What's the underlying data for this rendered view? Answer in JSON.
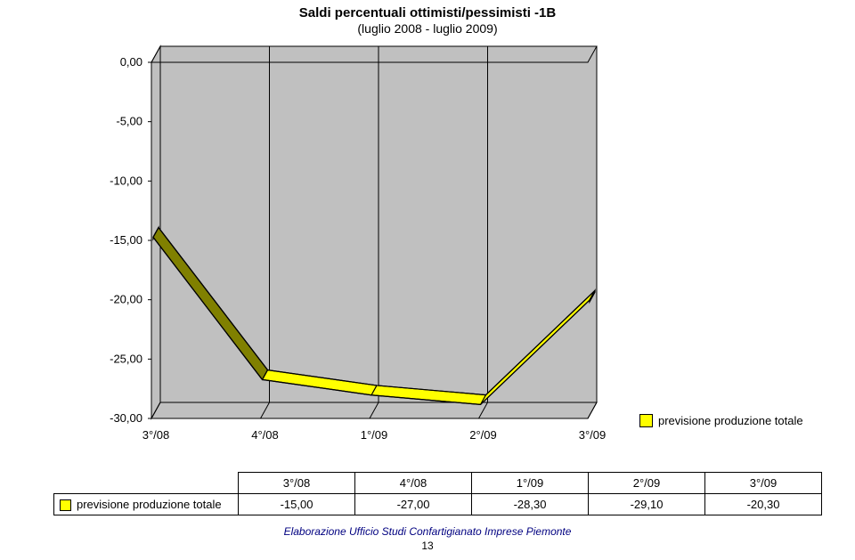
{
  "title": {
    "line1": "Saldi percentuali ottimisti/pessimisti -1B",
    "line2": "(luglio 2008 - luglio 2009)",
    "fontsize": 15,
    "fontsize_sub": 14,
    "color": "#000000"
  },
  "chart": {
    "type": "area-3d",
    "background_color": "#ffffff",
    "wall_color": "#c0c0c0",
    "floor_color": "#c0c0c0",
    "grid_color": "#000000",
    "ylim": [
      -30,
      0
    ],
    "ytick_step": 5,
    "yticks": [
      "0,00",
      "-5,00",
      "-10,00",
      "-15,00",
      "-20,00",
      "-25,00",
      "-30,00"
    ],
    "categories": [
      "3°/08",
      "4°/08",
      "1°/09",
      "2°/09",
      "3°/09"
    ],
    "depth_dx": 10,
    "depth_dy": -18,
    "series": {
      "name": "previsione produzione totale",
      "values": [
        -15.0,
        -27.0,
        -28.3,
        -29.1,
        -20.3
      ],
      "display_values": [
        "-15,00",
        "-27,00",
        "-28,30",
        "-29,10",
        "-20,30"
      ],
      "fill_front": "#808000",
      "fill_top": "#ffff00",
      "fill_side": "#ffff00",
      "stroke": "#000000",
      "stroke_width": 1.2
    }
  },
  "legend": {
    "label": "previsione produzione totale",
    "swatch_color": "#ffff00",
    "fontsize": 13
  },
  "table": {
    "row_label": "previsione produzione totale",
    "swatch_color": "#ffff00",
    "columns": [
      "3°/08",
      "4°/08",
      "1°/09",
      "2°/09",
      "3°/09"
    ],
    "row": [
      "-15,00",
      "-27,00",
      "-28,30",
      "-29,10",
      "-20,30"
    ]
  },
  "footer": {
    "text": "Elaborazione Ufficio Studi Confartigianato Imprese  Piemonte",
    "color": "#000080",
    "fontsize": 12
  },
  "page_number": "13"
}
